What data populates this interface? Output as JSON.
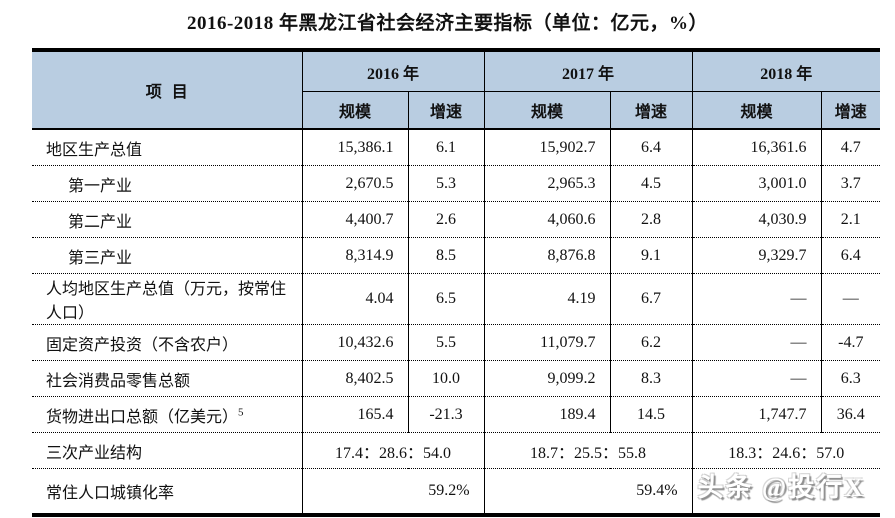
{
  "title": "2016-2018 年黑龙江省社会经济主要指标（单位：亿元，%）",
  "colors": {
    "header_bg": "#b9cde1",
    "border": "#000000",
    "watermark_gray": "#8f8f8f"
  },
  "header": {
    "item": "项目",
    "years": [
      "2016 年",
      "2017 年",
      "2018 年"
    ],
    "scale": "规模",
    "growth": "增速"
  },
  "rows": [
    {
      "label": "地区生产总值",
      "cells": [
        "15,386.1",
        "6.1",
        "15,902.7",
        "6.4",
        "16,361.6",
        "4.7"
      ]
    },
    {
      "label": "第一产业",
      "cells": [
        "2,670.5",
        "5.3",
        "2,965.3",
        "4.5",
        "3,001.0",
        "3.7"
      ]
    },
    {
      "label": "第二产业",
      "cells": [
        "4,400.7",
        "2.6",
        "4,060.6",
        "2.8",
        "4,030.9",
        "2.1"
      ]
    },
    {
      "label": "第三产业",
      "cells": [
        "8,314.9",
        "8.5",
        "8,876.8",
        "9.1",
        "9,329.7",
        "6.4"
      ]
    },
    {
      "label": "人均地区生产总值（万元，按常住人口）",
      "cells": [
        "4.04",
        "6.5",
        "4.19",
        "6.7",
        "—",
        "—"
      ]
    },
    {
      "label": "固定资产投资（不含农户）",
      "cells": [
        "10,432.6",
        "5.5",
        "11,079.7",
        "6.2",
        "—",
        "-4.7"
      ]
    },
    {
      "label": "社会消费品零售总额",
      "cells": [
        "8,402.5",
        "10.0",
        "9,099.2",
        "8.3",
        "—",
        "6.3"
      ]
    },
    {
      "label": "货物进出口总额（亿美元）",
      "label_sup": "5",
      "cells": [
        "165.4",
        "-21.3",
        "189.4",
        "14.5",
        "1,747.7",
        "36.4"
      ]
    },
    {
      "label": "三次产业结构",
      "merged": [
        "17.4：28.6：54.0",
        "18.7：25.5：55.8",
        "18.3：24.6：57.0"
      ]
    },
    {
      "label": "常住人口城镇化率",
      "merged": [
        "59.2%",
        "59.4%",
        ""
      ]
    }
  ],
  "watermark": "头条 @投行X",
  "chart_data": {
    "type": "table",
    "title": "2016-2018 年黑龙江省社会经济主要指标（单位：亿元，%）",
    "columns": [
      "项目",
      "2016年 规模",
      "2016年 增速",
      "2017年 规模",
      "2017年 增速",
      "2018年 规模",
      "2018年 增速"
    ],
    "rows": [
      [
        "地区生产总值",
        "15,386.1",
        "6.1",
        "15,902.7",
        "6.4",
        "16,361.6",
        "4.7"
      ],
      [
        "第一产业",
        "2,670.5",
        "5.3",
        "2,965.3",
        "4.5",
        "3,001.0",
        "3.7"
      ],
      [
        "第二产业",
        "4,400.7",
        "2.6",
        "4,060.6",
        "2.8",
        "4,030.9",
        "2.1"
      ],
      [
        "第三产业",
        "8,314.9",
        "8.5",
        "8,876.8",
        "9.1",
        "9,329.7",
        "6.4"
      ],
      [
        "人均地区生产总值（万元，按常住人口）",
        "4.04",
        "6.5",
        "4.19",
        "6.7",
        "—",
        "—"
      ],
      [
        "固定资产投资（不含农户）",
        "10,432.6",
        "5.5",
        "11,079.7",
        "6.2",
        "—",
        "-4.7"
      ],
      [
        "社会消费品零售总额",
        "8,402.5",
        "10.0",
        "9,099.2",
        "8.3",
        "—",
        "6.3"
      ],
      [
        "货物进出口总额（亿美元）5",
        "165.4",
        "-21.3",
        "189.4",
        "14.5",
        "1,747.7",
        "36.4"
      ],
      [
        "三次产业结构",
        "17.4：28.6：54.0",
        "17.4：28.6：54.0",
        "18.7：25.5：55.8",
        "18.7：25.5：55.8",
        "18.3：24.6：57.0",
        "18.3：24.6：57.0"
      ],
      [
        "常住人口城镇化率",
        "59.2%",
        "59.2%",
        "59.4%",
        "59.4%",
        "",
        ""
      ]
    ]
  }
}
